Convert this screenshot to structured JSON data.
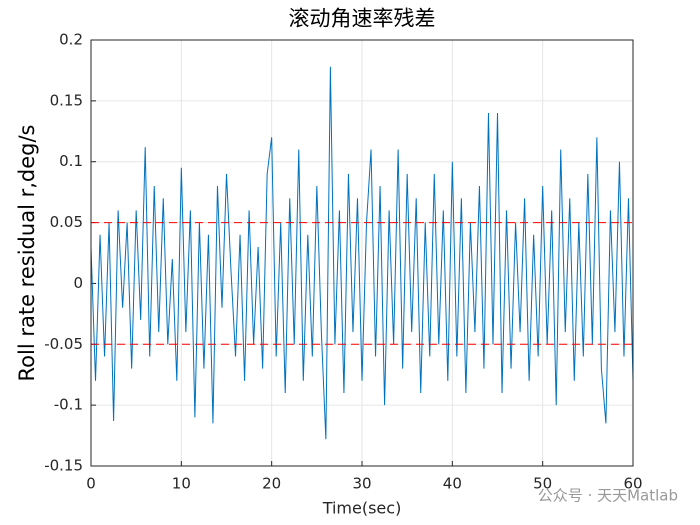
{
  "chart_data": {
    "type": "line",
    "title": "滚动角速率残差",
    "x_label": "Time(sec)",
    "y_label": "Roll rate residual r,deg/s",
    "watermark": "公众号 · 天天Matlab",
    "x": [
      0,
      0.5,
      1,
      1.5,
      2,
      2.5,
      3,
      3.5,
      4,
      4.5,
      5,
      5.5,
      6,
      6.5,
      7,
      7.5,
      8,
      8.5,
      9,
      9.5,
      10,
      10.5,
      11,
      11.5,
      12,
      12.5,
      13,
      13.5,
      14,
      14.5,
      15,
      15.5,
      16,
      16.5,
      17,
      17.5,
      18,
      18.5,
      19,
      19.5,
      20,
      20.5,
      21,
      21.5,
      22,
      22.5,
      23,
      23.5,
      24,
      24.5,
      25,
      25.5,
      26,
      26.5,
      27,
      27.5,
      28,
      28.5,
      29,
      29.5,
      30,
      30.5,
      31,
      31.5,
      32,
      32.5,
      33,
      33.5,
      34,
      34.5,
      35,
      35.5,
      36,
      36.5,
      37,
      37.5,
      38,
      38.5,
      39,
      39.5,
      40,
      40.5,
      41,
      41.5,
      42,
      42.5,
      43,
      43.5,
      44,
      44.5,
      45,
      45.5,
      46,
      46.5,
      47,
      47.5,
      48,
      48.5,
      49,
      49.5,
      50,
      50.5,
      51,
      51.5,
      52,
      52.5,
      53,
      53.5,
      54,
      54.5,
      55,
      55.5,
      56,
      56.5,
      57,
      57.5,
      58,
      58.5,
      59,
      59.5,
      60
    ],
    "series": [
      {
        "color": "#0072bd",
        "values": [
          0.03,
          -0.08,
          0.04,
          -0.06,
          0.05,
          -0.113,
          0.06,
          -0.02,
          0.05,
          -0.07,
          0.06,
          -0.03,
          0.112,
          -0.06,
          0.08,
          -0.04,
          0.07,
          -0.05,
          0.02,
          -0.08,
          0.095,
          -0.04,
          0.06,
          -0.11,
          0.05,
          -0.07,
          0.04,
          -0.115,
          0.08,
          -0.02,
          0.09,
          0.01,
          -0.06,
          0.04,
          -0.08,
          0.06,
          -0.05,
          0.03,
          -0.07,
          0.09,
          0.12,
          -0.06,
          0.05,
          -0.09,
          0.07,
          -0.05,
          0.11,
          -0.08,
          0.04,
          -0.06,
          0.08,
          -0.04,
          -0.128,
          0.178,
          -0.05,
          0.06,
          -0.09,
          0.09,
          -0.04,
          0.07,
          -0.08,
          0.05,
          0.11,
          -0.06,
          0.08,
          -0.1,
          0.06,
          -0.05,
          0.11,
          -0.07,
          0.09,
          -0.04,
          0.07,
          -0.09,
          0.05,
          -0.06,
          0.09,
          -0.05,
          0.06,
          -0.08,
          0.1,
          -0.06,
          0.07,
          -0.09,
          0.05,
          -0.04,
          0.08,
          -0.07,
          0.14,
          -0.05,
          0.14,
          -0.09,
          0.06,
          -0.07,
          0.05,
          -0.04,
          0.07,
          -0.08,
          0.04,
          -0.06,
          0.08,
          -0.05,
          0.06,
          -0.1,
          0.11,
          -0.04,
          0.07,
          -0.08,
          0.05,
          -0.06,
          0.09,
          -0.05,
          0.12,
          -0.07,
          -0.115,
          0.06,
          -0.04,
          0.1,
          -0.06,
          0.07,
          -0.08
        ]
      }
    ],
    "hlines": [
      {
        "value": 0.05,
        "color": "#ff0000"
      },
      {
        "value": -0.05,
        "color": "#ff0000"
      }
    ],
    "xlim": [
      0,
      60
    ],
    "xticks": [
      0,
      10,
      20,
      30,
      40,
      50,
      60
    ],
    "ylim": [
      -0.15,
      0.2
    ],
    "yticks": [
      -0.15,
      -0.1,
      -0.05,
      0,
      0.05,
      0.1,
      0.15,
      0.2
    ],
    "grid": true
  }
}
